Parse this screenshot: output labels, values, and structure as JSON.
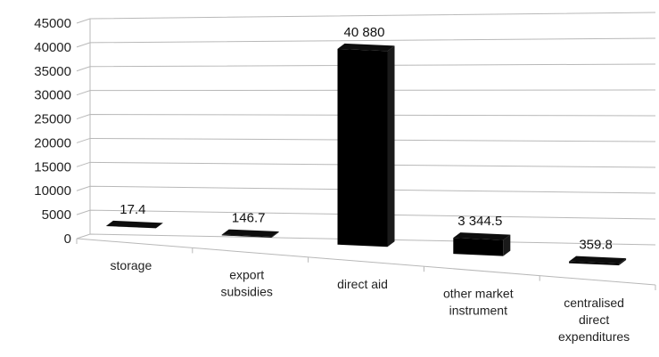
{
  "chart_data": {
    "type": "bar",
    "categories": [
      [
        "storage"
      ],
      [
        "export",
        "subsidies"
      ],
      [
        "direct aid"
      ],
      [
        "other market",
        "instrument"
      ],
      [
        "centralised",
        "direct",
        "expenditures"
      ]
    ],
    "values": [
      17.4,
      146.7,
      40880,
      3344.5,
      359.8
    ],
    "data_labels": [
      "17.4",
      "146.7",
      "40 880",
      "3 344.5",
      "359.8"
    ],
    "y_ticks": [
      "0",
      "5000",
      "10000",
      "15000",
      "20000",
      "25000",
      "30000",
      "35000",
      "40000",
      "45000"
    ],
    "ylim": [
      0,
      45000
    ],
    "grid": true,
    "legend": "none",
    "bar_color": "#000000",
    "title": "",
    "xlabel": "",
    "ylabel": ""
  }
}
